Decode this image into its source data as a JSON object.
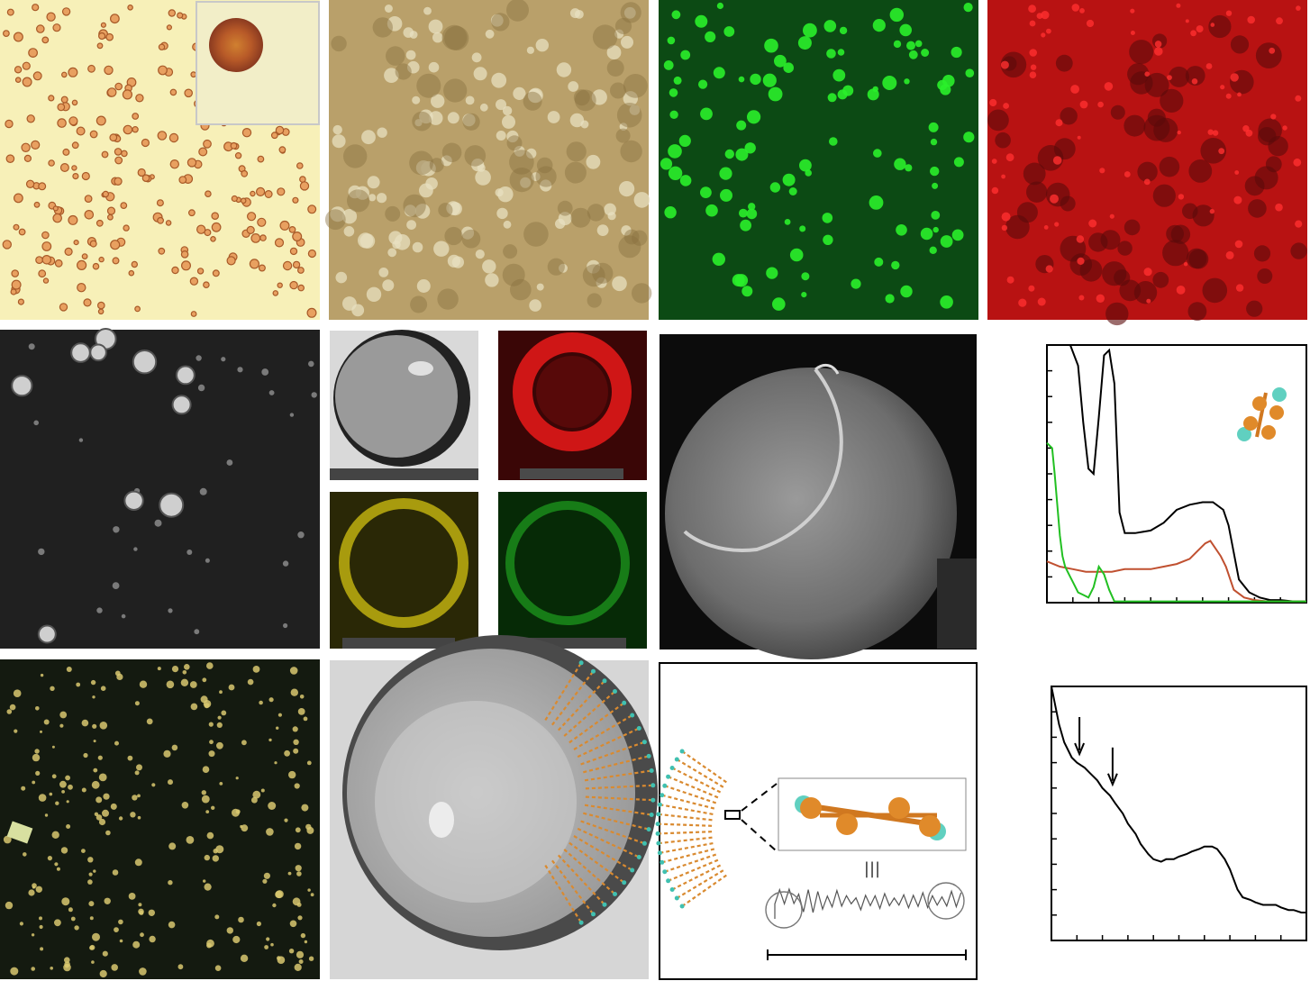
{
  "figure": {
    "panels": [
      {
        "id": "a",
        "kind": "bright-field-micrograph",
        "inset": true
      },
      {
        "id": "b",
        "kind": "bright-field-micrograph"
      },
      {
        "id": "c",
        "kind": "green-fluorescence-micrograph",
        "color": "#1fd11f"
      },
      {
        "id": "d",
        "kind": "red-fluorescence-micrograph",
        "color": "#e01010"
      },
      {
        "id": "e",
        "kind": "sem-micrograph"
      },
      {
        "id": "f",
        "kind": "tem-micrograph"
      },
      {
        "id": "g",
        "kind": "elemental-map",
        "color": "#e01010"
      },
      {
        "id": "h",
        "kind": "elemental-map",
        "color": "#d8c810"
      },
      {
        "id": "i",
        "kind": "elemental-map",
        "color": "#1fb01f"
      },
      {
        "id": "j",
        "kind": "sem-micrograph-single-sphere"
      },
      {
        "id": "k",
        "kind": "spectra-plot"
      },
      {
        "id": "l",
        "kind": "polarized-micrograph"
      },
      {
        "id": "m",
        "kind": "tem-micrograph-with-model"
      },
      {
        "id": "n",
        "kind": "molecular-model-schematic",
        "symbol": "|||"
      },
      {
        "id": "o",
        "kind": "spectrum-plot"
      }
    ]
  },
  "chart_data": [
    {
      "type": "line",
      "panel": "k",
      "title": "",
      "xlabel": "",
      "ylabel": "",
      "xlim": [
        0,
        100
      ],
      "ylim": [
        0,
        100
      ],
      "grid": false,
      "series": [
        {
          "color": "#000000",
          "x": [
            9,
            12,
            14,
            16,
            18,
            20,
            22,
            24,
            26,
            28,
            30,
            34,
            40,
            45,
            50,
            55,
            60,
            64,
            68,
            70,
            74,
            78,
            82,
            86,
            90,
            95,
            100
          ],
          "y": [
            100,
            92,
            70,
            52,
            50,
            72,
            96,
            98,
            85,
            35,
            27,
            27,
            28,
            31,
            36,
            38,
            39,
            39,
            36,
            30,
            9,
            4,
            2,
            1,
            1,
            0.5,
            0.5
          ]
        },
        {
          "color": "#c05030",
          "x": [
            0,
            5,
            10,
            15,
            20,
            25,
            30,
            35,
            40,
            45,
            50,
            55,
            58,
            61,
            63,
            65,
            67,
            69,
            72,
            76,
            80,
            85,
            90,
            95,
            100
          ],
          "y": [
            16,
            14,
            13,
            12,
            12,
            12,
            13,
            13,
            13,
            14,
            15,
            17,
            20,
            23,
            24,
            21,
            18,
            14,
            5,
            2,
            1,
            0.5,
            0.5,
            0.5,
            0.5
          ]
        },
        {
          "color": "#22c022",
          "x": [
            0,
            2,
            3,
            4,
            5,
            6,
            7,
            8,
            9,
            10,
            12,
            14,
            16,
            18,
            20,
            22,
            24,
            26,
            28,
            30,
            35,
            40,
            50,
            60,
            70,
            80,
            90,
            100
          ],
          "y": [
            62,
            60,
            50,
            38,
            26,
            18,
            14,
            12,
            10,
            8,
            4,
            3,
            2,
            6,
            14,
            11,
            5,
            0.5,
            0.5,
            0.5,
            0.5,
            0.5,
            0.5,
            0.5,
            0.5,
            0.5,
            0.5,
            0.5
          ]
        }
      ]
    },
    {
      "type": "line",
      "panel": "o",
      "title": "",
      "xlabel": "",
      "ylabel": "",
      "xlim": [
        0,
        100
      ],
      "ylim": [
        0,
        100
      ],
      "grid": false,
      "series": [
        {
          "color": "#000000",
          "x": [
            0,
            3,
            5,
            8,
            10,
            13,
            15,
            18,
            20,
            23,
            25,
            28,
            30,
            33,
            35,
            38,
            40,
            43,
            45,
            48,
            50,
            53,
            55,
            58,
            60,
            63,
            65,
            68,
            70,
            73,
            75,
            78,
            80,
            83,
            85,
            88,
            90,
            93,
            95,
            98,
            100
          ],
          "y": [
            100,
            85,
            78,
            72,
            70,
            68,
            66,
            63,
            60,
            57,
            54,
            50,
            46,
            42,
            38,
            34,
            32,
            31,
            32,
            32,
            33,
            34,
            35,
            36,
            37,
            37,
            36,
            32,
            28,
            20,
            17,
            16,
            15,
            14,
            14,
            14,
            13,
            12,
            12,
            11,
            11
          ]
        }
      ],
      "annotations": [
        {
          "type": "arrow",
          "x": 11,
          "y": 72
        },
        {
          "type": "arrow",
          "x": 24,
          "y": 60
        }
      ]
    }
  ]
}
